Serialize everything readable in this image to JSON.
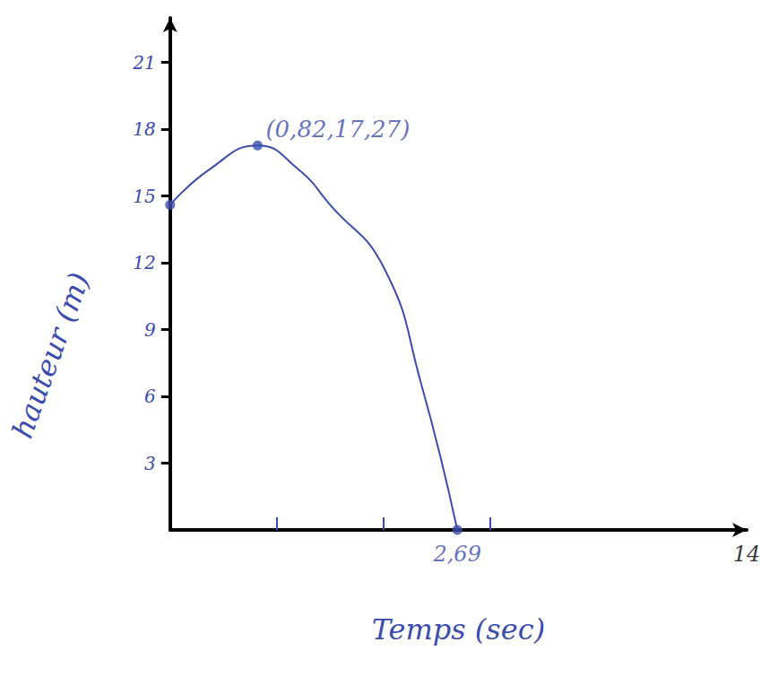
{
  "chart_data": {
    "type": "line",
    "x_label": "Temps (sec)",
    "y_label": "hauteur (m)",
    "xlim": [
      0,
      5.4
    ],
    "xticks": [
      1,
      2,
      3
    ],
    "ylim": [
      0,
      23
    ],
    "yticks": [
      3,
      6,
      9,
      12,
      15,
      18,
      21
    ],
    "tick_labels": "y",
    "grid": false,
    "series": [
      {
        "type": "line",
        "color": "#3b4cae",
        "marker": "none",
        "line_style": "solid",
        "x": [
          0,
          0.37,
          0.82,
          1.2,
          1.5,
          2,
          2.35,
          2.69
        ],
        "values": [
          14.6,
          16.2,
          17.27,
          16.2,
          14.6,
          11.8,
          6.6,
          0
        ]
      },
      {
        "type": "scatter",
        "color": "#3b4cae",
        "marker": "circle",
        "x": [
          0,
          0.82,
          2.69
        ],
        "values": [
          14.6,
          17.27,
          0
        ]
      }
    ],
    "annotations": [
      {
        "text": "(0,82,17,27)",
        "x": 0.82,
        "y": 17.27,
        "color": "#3b4cae"
      },
      {
        "text": "2,69",
        "x": 2.69,
        "y": 0,
        "color": "#3b4cae"
      },
      {
        "text": "14",
        "x": 5.4,
        "y": 0,
        "color": "#000000"
      }
    ]
  }
}
